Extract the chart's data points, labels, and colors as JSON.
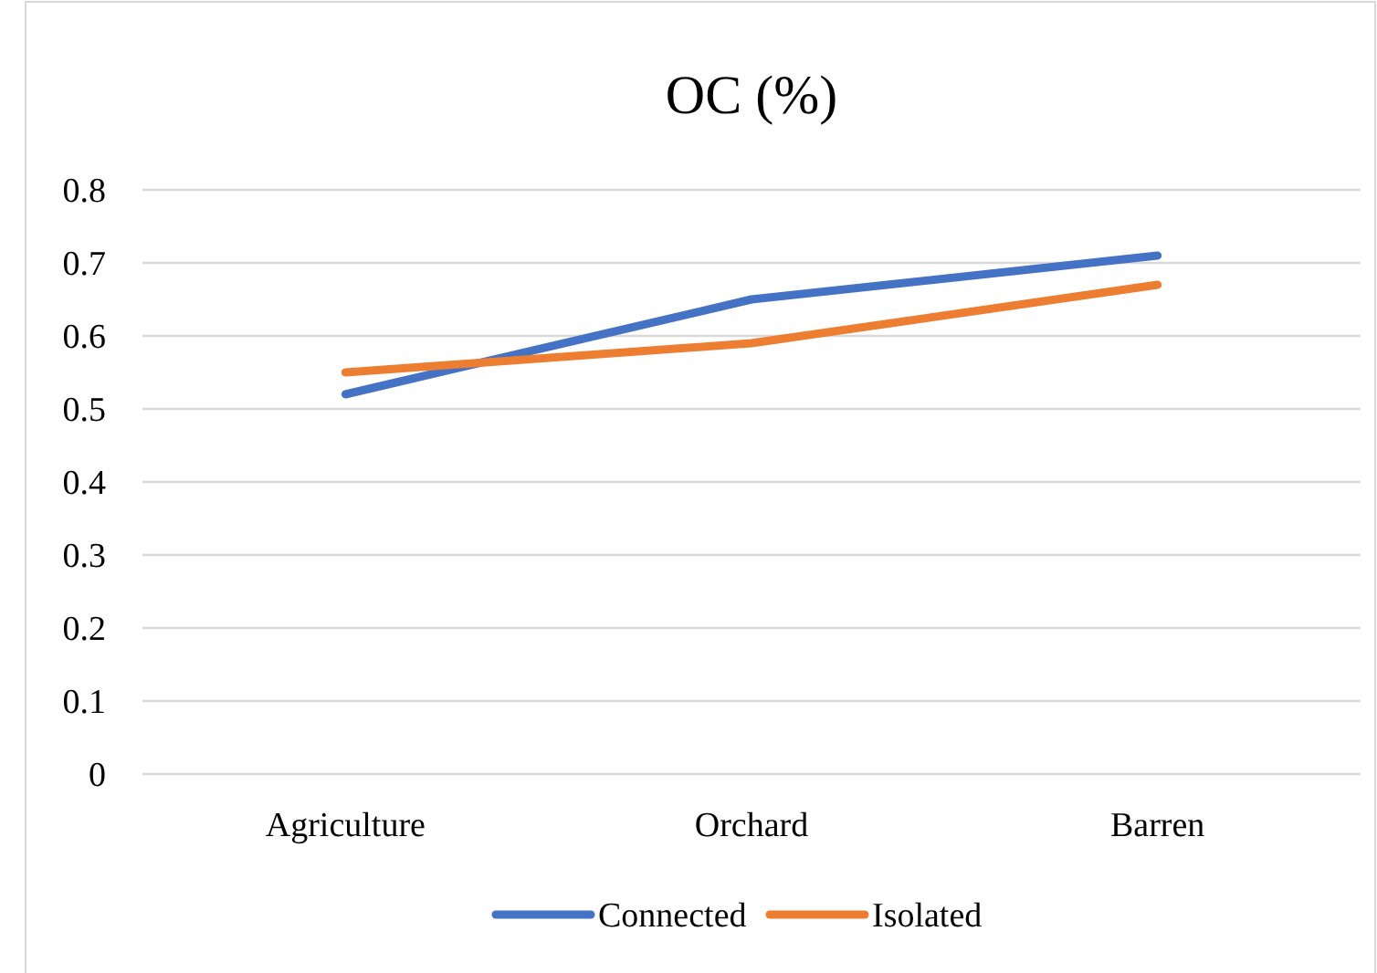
{
  "chart_data": {
    "type": "line",
    "title": "OC (%)",
    "categories": [
      "Agriculture",
      "Orchard",
      "Barren"
    ],
    "series": [
      {
        "name": "Connected",
        "color": "#4472c4",
        "values": [
          0.52,
          0.65,
          0.71
        ]
      },
      {
        "name": "Isolated",
        "color": "#ed7d31",
        "values": [
          0.55,
          0.59,
          0.67
        ]
      }
    ],
    "ylim": [
      0,
      0.8
    ],
    "yticks": [
      0,
      0.1,
      0.2,
      0.3,
      0.4,
      0.5,
      0.6,
      0.7,
      0.8
    ],
    "grid": "y",
    "legend": "bottom",
    "marker": "none",
    "line_style": "solid"
  }
}
